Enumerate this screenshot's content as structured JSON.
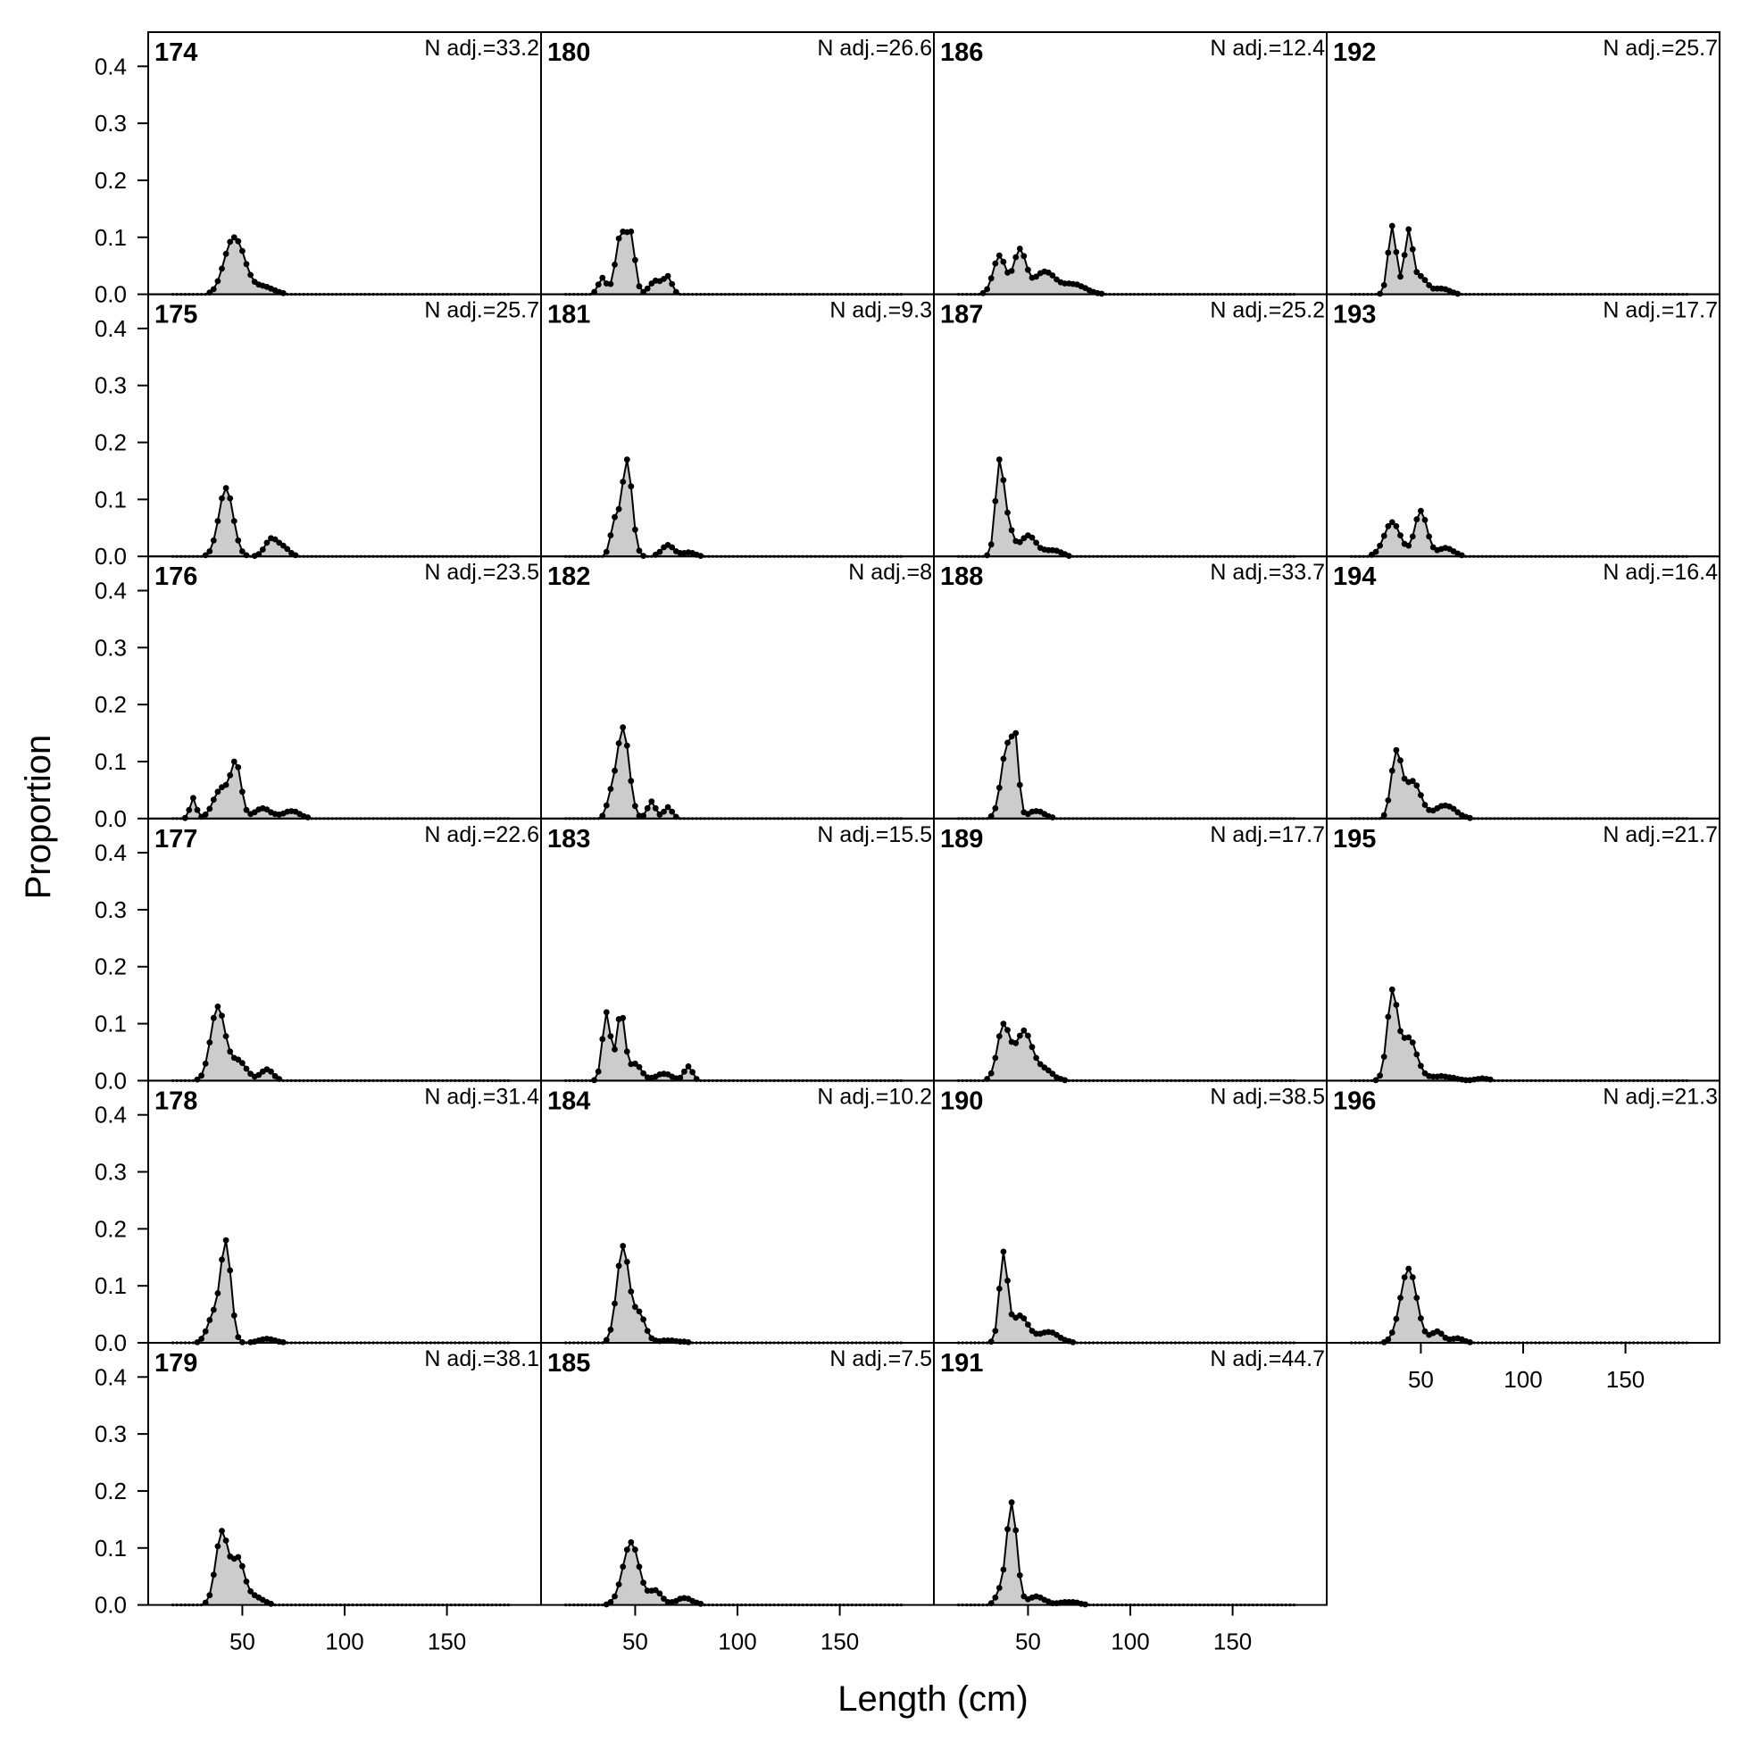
{
  "chart_data": {
    "type": "area",
    "xlabel": "Length (cm)",
    "ylabel": "Proportion",
    "xlim": [
      4,
      196
    ],
    "ylim": [
      0,
      0.46
    ],
    "xticks": [
      50,
      100,
      150
    ],
    "yticks": [
      0.0,
      0.1,
      0.2,
      0.3,
      0.4
    ],
    "x_start": 16,
    "x_step": 2,
    "fill_color": "#cccccc",
    "line_color": "#000000",
    "panels": [
      {
        "id": "174",
        "n_label": "N adj.=33.2",
        "peaks": [
          [
            44,
            0.1,
            4
          ],
          [
            49,
            0.08,
            4
          ],
          [
            60,
            0.02,
            5
          ]
        ]
      },
      {
        "id": "175",
        "n_label": "N adj.=25.7",
        "peaks": [
          [
            42,
            0.12,
            3.5
          ],
          [
            64,
            0.03,
            3
          ],
          [
            70,
            0.015,
            3
          ]
        ]
      },
      {
        "id": "176",
        "n_label": "N adj.=23.5",
        "peaks": [
          [
            26,
            0.04,
            1.5
          ],
          [
            40,
            0.06,
            4
          ],
          [
            47,
            0.1,
            2.5
          ],
          [
            60,
            0.02,
            4
          ],
          [
            74,
            0.015,
            4
          ]
        ]
      },
      {
        "id": "177",
        "n_label": "N adj.=22.6",
        "peaks": [
          [
            38,
            0.13,
            3.5
          ],
          [
            48,
            0.035,
            4
          ],
          [
            62,
            0.02,
            3
          ]
        ]
      },
      {
        "id": "178",
        "n_label": "N adj.=31.4",
        "peaks": [
          [
            42,
            0.18,
            2.5
          ],
          [
            36,
            0.05,
            3
          ],
          [
            62,
            0.007,
            4
          ]
        ]
      },
      {
        "id": "179",
        "n_label": "N adj.=38.1",
        "peaks": [
          [
            40,
            0.13,
            3
          ],
          [
            48,
            0.08,
            3
          ],
          [
            56,
            0.015,
            4
          ]
        ]
      },
      {
        "id": "180",
        "n_label": "N adj.=26.6",
        "peaks": [
          [
            43,
            0.11,
            2.5
          ],
          [
            48,
            0.1,
            2
          ],
          [
            34,
            0.03,
            2
          ],
          [
            60,
            0.025,
            3
          ],
          [
            66,
            0.03,
            2
          ]
        ]
      },
      {
        "id": "181",
        "n_label": "N adj.=9.3",
        "peaks": [
          [
            46,
            0.17,
            2.5
          ],
          [
            40,
            0.06,
            2
          ],
          [
            66,
            0.02,
            3
          ],
          [
            76,
            0.007,
            3
          ]
        ]
      },
      {
        "id": "182",
        "n_label": "N adj.=8",
        "peaks": [
          [
            44,
            0.16,
            3
          ],
          [
            38,
            0.03,
            2
          ],
          [
            58,
            0.03,
            2
          ],
          [
            66,
            0.02,
            2
          ]
        ]
      },
      {
        "id": "183",
        "n_label": "N adj.=15.5",
        "peaks": [
          [
            36,
            0.12,
            2
          ],
          [
            43,
            0.12,
            2
          ],
          [
            50,
            0.03,
            3
          ],
          [
            64,
            0.012,
            4
          ],
          [
            76,
            0.025,
            2
          ]
        ]
      },
      {
        "id": "184",
        "n_label": "N adj.=10.2",
        "peaks": [
          [
            44,
            0.17,
            3
          ],
          [
            52,
            0.05,
            3
          ],
          [
            66,
            0.004,
            6
          ]
        ]
      },
      {
        "id": "185",
        "n_label": "N adj.=7.5",
        "peaks": [
          [
            48,
            0.11,
            4
          ],
          [
            60,
            0.025,
            3
          ],
          [
            74,
            0.012,
            4
          ]
        ]
      },
      {
        "id": "186",
        "n_label": "N adj.=12.4",
        "peaks": [
          [
            36,
            0.07,
            3
          ],
          [
            46,
            0.08,
            3
          ],
          [
            58,
            0.04,
            5
          ],
          [
            72,
            0.018,
            6
          ]
        ]
      },
      {
        "id": "187",
        "n_label": "N adj.=25.2",
        "peaks": [
          [
            36,
            0.17,
            2
          ],
          [
            40,
            0.06,
            2.5
          ],
          [
            50,
            0.04,
            4
          ],
          [
            62,
            0.012,
            4
          ]
        ]
      },
      {
        "id": "188",
        "n_label": "N adj.=33.7",
        "peaks": [
          [
            40,
            0.15,
            3
          ],
          [
            44,
            0.11,
            1.5
          ],
          [
            54,
            0.015,
            4
          ]
        ]
      },
      {
        "id": "189",
        "n_label": "N adj.=17.7",
        "peaks": [
          [
            38,
            0.1,
            3
          ],
          [
            48,
            0.09,
            4
          ],
          [
            58,
            0.02,
            4
          ]
        ]
      },
      {
        "id": "190",
        "n_label": "N adj.=38.5",
        "peaks": [
          [
            38,
            0.16,
            2
          ],
          [
            46,
            0.05,
            4
          ],
          [
            60,
            0.02,
            5
          ]
        ]
      },
      {
        "id": "191",
        "n_label": "N adj.=44.7",
        "peaks": [
          [
            42,
            0.18,
            2.5
          ],
          [
            36,
            0.02,
            2
          ],
          [
            54,
            0.015,
            4
          ],
          [
            70,
            0.005,
            5
          ]
        ]
      },
      {
        "id": "192",
        "n_label": "N adj.=25.7",
        "peaks": [
          [
            36,
            0.12,
            2
          ],
          [
            44,
            0.11,
            2
          ],
          [
            50,
            0.03,
            3
          ],
          [
            60,
            0.01,
            4
          ]
        ]
      },
      {
        "id": "193",
        "n_label": "N adj.=17.7",
        "peaks": [
          [
            36,
            0.06,
            4
          ],
          [
            50,
            0.08,
            3
          ],
          [
            62,
            0.015,
            4
          ]
        ]
      },
      {
        "id": "194",
        "n_label": "N adj.=16.4",
        "peaks": [
          [
            38,
            0.12,
            2.5
          ],
          [
            46,
            0.07,
            4
          ],
          [
            62,
            0.025,
            5
          ]
        ]
      },
      {
        "id": "195",
        "n_label": "N adj.=21.7",
        "peaks": [
          [
            36,
            0.16,
            2.5
          ],
          [
            44,
            0.08,
            4
          ],
          [
            60,
            0.008,
            6
          ],
          [
            80,
            0.004,
            3
          ]
        ]
      },
      {
        "id": "196",
        "n_label": "N adj.=21.3",
        "peaks": [
          [
            44,
            0.13,
            4
          ],
          [
            58,
            0.02,
            3
          ],
          [
            68,
            0.008,
            3
          ]
        ]
      }
    ]
  }
}
